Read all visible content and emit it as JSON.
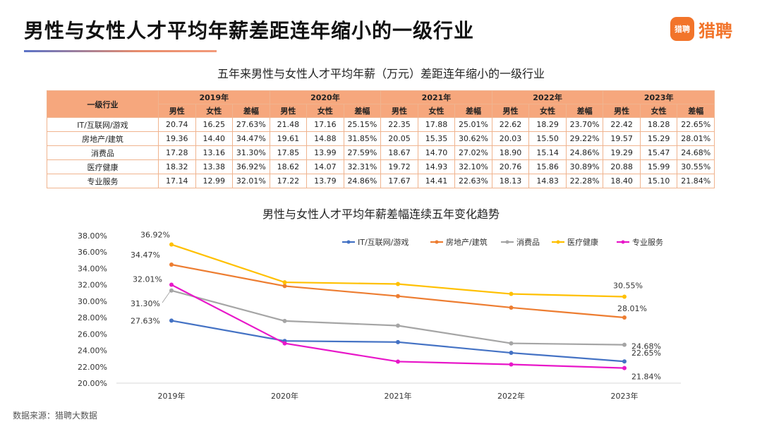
{
  "page": {
    "title": "男性与女性人才平均年薪差距连年缩小的一级行业",
    "logo_badge": "猎聘",
    "logo_text": "猎聘",
    "brand_color": "#f2742a"
  },
  "table": {
    "title": "五年来男性与女性人才平均年薪（万元）差距连年缩小的一级行业",
    "industry_header": "一级行业",
    "years": [
      "2019年",
      "2020年",
      "2021年",
      "2022年",
      "2023年"
    ],
    "sub_headers": [
      "男性",
      "女性",
      "差幅"
    ],
    "rows": [
      {
        "industry": "IT/互联网/游戏",
        "cells": [
          "20.74",
          "16.25",
          "27.63%",
          "21.48",
          "17.16",
          "25.15%",
          "22.35",
          "17.88",
          "25.01%",
          "22.62",
          "18.29",
          "23.70%",
          "22.42",
          "18.28",
          "22.65%"
        ]
      },
      {
        "industry": "房地产/建筑",
        "cells": [
          "19.36",
          "14.40",
          "34.47%",
          "19.61",
          "14.88",
          "31.85%",
          "20.05",
          "15.35",
          "30.62%",
          "20.03",
          "15.50",
          "29.22%",
          "19.57",
          "15.29",
          "28.01%"
        ]
      },
      {
        "industry": "消费品",
        "cells": [
          "17.28",
          "13.16",
          "31.30%",
          "17.85",
          "13.99",
          "27.59%",
          "18.67",
          "14.70",
          "27.02%",
          "18.90",
          "15.14",
          "24.86%",
          "19.29",
          "15.47",
          "24.68%"
        ]
      },
      {
        "industry": "医疗健康",
        "cells": [
          "18.32",
          "13.38",
          "36.92%",
          "18.62",
          "14.07",
          "32.31%",
          "19.72",
          "14.93",
          "32.10%",
          "20.76",
          "15.86",
          "30.89%",
          "20.88",
          "15.99",
          "30.55%"
        ]
      },
      {
        "industry": "专业服务",
        "cells": [
          "17.14",
          "12.99",
          "32.01%",
          "17.22",
          "13.79",
          "24.86%",
          "17.67",
          "14.41",
          "22.63%",
          "18.13",
          "14.83",
          "22.28%",
          "18.40",
          "15.10",
          "21.84%"
        ]
      }
    ]
  },
  "chart_data": {
    "type": "line",
    "title": "男性与女性人才平均年薪差幅连续五年变化趋势",
    "categories": [
      "2019年",
      "2020年",
      "2021年",
      "2022年",
      "2023年"
    ],
    "ylim": [
      20,
      38
    ],
    "y_ticks": [
      "20.00%",
      "22.00%",
      "24.00%",
      "26.00%",
      "28.00%",
      "30.00%",
      "32.00%",
      "34.00%",
      "36.00%",
      "38.00%"
    ],
    "grid": false,
    "legend_position": "top-right",
    "series": [
      {
        "name": "IT/互联网/游戏",
        "color": "#4472c4",
        "values": [
          27.63,
          25.15,
          25.01,
          23.7,
          22.65
        ],
        "labels": [
          "27.63%",
          "",
          "",
          "",
          "22.65%"
        ]
      },
      {
        "name": "房地产/建筑",
        "color": "#ed7d31",
        "values": [
          34.47,
          31.85,
          30.62,
          29.22,
          28.01
        ],
        "labels": [
          "34.47%",
          "",
          "",
          "",
          "28.01%"
        ]
      },
      {
        "name": "消费品",
        "color": "#a5a5a5",
        "values": [
          31.3,
          27.59,
          27.02,
          24.86,
          24.68
        ],
        "labels": [
          "31.30%",
          "",
          "",
          "",
          "24.68%"
        ]
      },
      {
        "name": "医疗健康",
        "color": "#ffc000",
        "values": [
          36.92,
          32.31,
          32.1,
          30.89,
          30.55
        ],
        "labels": [
          "36.92%",
          "",
          "",
          "",
          "30.55%"
        ]
      },
      {
        "name": "专业服务",
        "color": "#e817c9",
        "values": [
          32.01,
          24.86,
          22.63,
          22.28,
          21.84
        ],
        "labels": [
          "32.01%",
          "",
          "",
          "",
          "21.84%"
        ]
      }
    ]
  },
  "footer": {
    "source": "数据来源：猎聘大数据"
  }
}
